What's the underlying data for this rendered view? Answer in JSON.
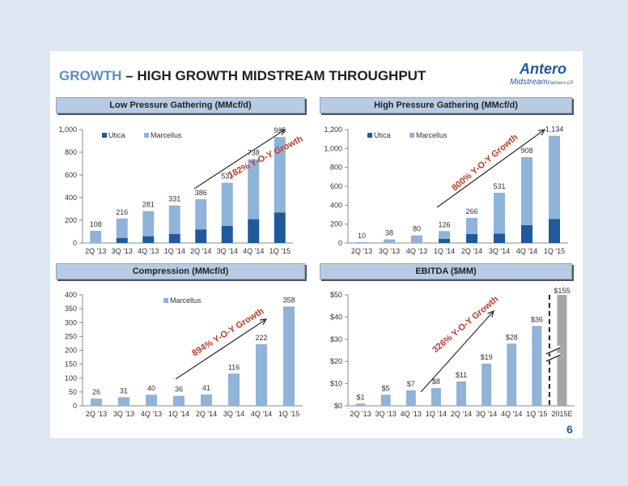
{
  "page": {
    "title_accent": "GROWTH",
    "title_rest": " – HIGH GROWTH MIDSTREAM THROUGHPUT",
    "page_number": "6",
    "logo": {
      "name": "Antero",
      "sub": "Midstream",
      "sub_suffix": "Partners LP"
    }
  },
  "colors": {
    "utica": "#1f5a9b",
    "marcellus": "#8fb3d9",
    "annotation": "#c0392b",
    "projection": "#a6a6a6"
  },
  "chart_data": [
    {
      "id": "lp",
      "type": "bar",
      "stacked": true,
      "title": "Low Pressure Gathering (MMcf/d)",
      "categories": [
        "2Q '13",
        "3Q '13",
        "4Q '13",
        "1Q '14",
        "2Q '14",
        "3Q '14",
        "4Q '14",
        "1Q '15"
      ],
      "series": [
        {
          "name": "Utica",
          "values": [
            0,
            45,
            60,
            80,
            120,
            150,
            210,
            270
          ]
        },
        {
          "name": "Marcellus",
          "values": [
            108,
            171,
            221,
            251,
            266,
            381,
            528,
            665
          ]
        }
      ],
      "totals": [
        "108",
        "216",
        "281",
        "331",
        "386",
        "531",
        "738",
        "935"
      ],
      "ylim": [
        0,
        1000
      ],
      "yticks": [
        0,
        200,
        400,
        600,
        800,
        1000
      ],
      "ytick_labels": [
        "0",
        "200",
        "400",
        "600",
        "800",
        "1,000"
      ],
      "legend": "top-left",
      "annotation": "182% Y-O-Y Growth",
      "grid": false
    },
    {
      "id": "hp",
      "type": "bar",
      "stacked": true,
      "title": "High Pressure Gathering (MMcf/d)",
      "categories": [
        "2Q '13",
        "3Q '13",
        "4Q '13",
        "1Q '14",
        "2Q '14",
        "3Q '14",
        "4Q '14",
        "1Q '15"
      ],
      "series": [
        {
          "name": "Utica",
          "values": [
            0,
            0,
            0,
            45,
            95,
            100,
            190,
            255
          ]
        },
        {
          "name": "Marcellus",
          "values": [
            10,
            38,
            80,
            81,
            171,
            431,
            718,
            879
          ]
        }
      ],
      "totals": [
        "10",
        "38",
        "80",
        "126",
        "266",
        "531",
        "908",
        "1,134"
      ],
      "ylim": [
        0,
        1200
      ],
      "yticks": [
        0,
        200,
        400,
        600,
        800,
        1000,
        1200
      ],
      "ytick_labels": [
        "0",
        "200",
        "400",
        "600",
        "800",
        "1,000",
        "1,200"
      ],
      "legend": "top-left",
      "annotation": "800% Y-O-Y Growth",
      "grid": false
    },
    {
      "id": "cp",
      "type": "bar",
      "title": "Compression (MMcf/d)",
      "categories": [
        "2Q '13",
        "3Q '13",
        "4Q '13",
        "1Q '14",
        "2Q '14",
        "3Q '14",
        "4Q '14",
        "1Q '15"
      ],
      "series": [
        {
          "name": "Marcellus",
          "values": [
            26,
            31,
            40,
            36,
            41,
            116,
            222,
            358
          ]
        }
      ],
      "totals": [
        "26",
        "31",
        "40",
        "36",
        "41",
        "116",
        "222",
        "358"
      ],
      "ylim": [
        0,
        400
      ],
      "yticks": [
        0,
        50,
        100,
        150,
        200,
        250,
        300,
        350,
        400
      ],
      "ytick_labels": [
        "0",
        "50",
        "100",
        "150",
        "200",
        "250",
        "300",
        "350",
        "400"
      ],
      "legend": "top-center",
      "annotation": "894% Y-O-Y Growth",
      "grid": false
    },
    {
      "id": "eb",
      "type": "bar",
      "title": "EBITDA ($MM)",
      "categories": [
        "2Q '13",
        "3Q '13",
        "4Q '13",
        "1Q '14",
        "2Q '14",
        "3Q '14",
        "4Q '14",
        "1Q '15",
        "2015E"
      ],
      "series": [
        {
          "name": "",
          "values": [
            1,
            5,
            7,
            8,
            11,
            19,
            28,
            36,
            155
          ]
        }
      ],
      "totals": [
        "$1",
        "$5",
        "$7",
        "$8",
        "$11",
        "$19",
        "$28",
        "$36",
        "$155"
      ],
      "ylim": [
        0,
        50
      ],
      "axis_break": true,
      "projection_category": "2015E",
      "yticks": [
        0,
        10,
        20,
        30,
        40,
        50
      ],
      "ytick_labels": [
        "$0",
        "$10",
        "$20",
        "$30",
        "$40",
        "$50"
      ],
      "legend": "none",
      "annotation": "326% Y-O-Y Growth",
      "grid": false
    }
  ]
}
